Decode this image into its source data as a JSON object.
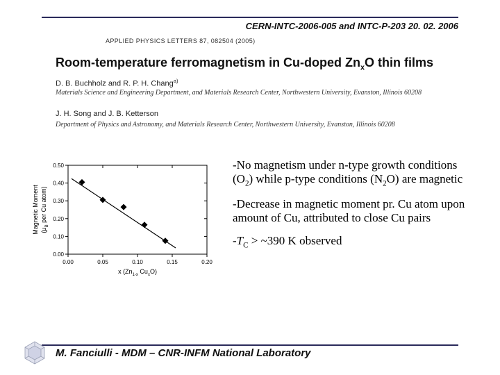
{
  "header": {
    "ref": "CERN-INTC-2006-005 and INTC-P-203 20. 02. 2006",
    "journal": "APPLIED PHYSICS LETTERS 87, 082504 (2005)"
  },
  "paper": {
    "title_pre": "Room-temperature ferromagnetism in Cu-doped Zn",
    "title_sub": "x",
    "title_post": "O thin films",
    "authors1": "D. B. Buchholz and R. P. H. Chang",
    "authors1_sup": "a)",
    "affil1": "Materials Science and Engineering Department, and Materials Research Center, Northwestern University, Evanston, Illinois 60208",
    "authors2": "J. H. Song and J. B. Ketterson",
    "affil2": "Department of Physics and Astronomy, and Materials Research Center, Northwestern University, Evanston, Illinois 60208"
  },
  "chart": {
    "type": "scatter-line",
    "xlabel_pre": "x (Zn",
    "xlabel_mid": "1-x",
    "xlabel_post": " Cu",
    "xlabel_end": "O)",
    "ylabel_l1": "Magnetic Moment",
    "ylabel_l2_pre": "(μ",
    "ylabel_l2_sub": "B",
    "ylabel_l2_post": " per Cu atom)",
    "xlim": [
      0.0,
      0.2
    ],
    "ylim": [
      0.0,
      0.5
    ],
    "xticks": [
      0.0,
      0.05,
      0.1,
      0.15,
      0.2
    ],
    "yticks": [
      0.0,
      0.1,
      0.2,
      0.3,
      0.4,
      0.5
    ],
    "xtick_labels": [
      "0.00",
      "0.05",
      "0.10",
      "0.15",
      "0.20"
    ],
    "ytick_labels": [
      "0.00",
      "0.10",
      "0.20",
      "0.30",
      "0.40",
      "0.50"
    ],
    "points": [
      {
        "x": 0.02,
        "y": 0.405
      },
      {
        "x": 0.05,
        "y": 0.305
      },
      {
        "x": 0.08,
        "y": 0.265
      },
      {
        "x": 0.11,
        "y": 0.165
      },
      {
        "x": 0.14,
        "y": 0.075
      }
    ],
    "line": {
      "x1": 0.005,
      "y1": 0.425,
      "x2": 0.155,
      "y2": 0.035
    },
    "marker_color": "#000000",
    "marker_size": 4.5,
    "line_color": "#000000",
    "line_width": 1.2,
    "axis_color": "#000000",
    "tick_fontsize": 8,
    "label_fontsize": 9,
    "background_color": "#ffffff"
  },
  "bullets": {
    "b1_a": "-No magnetism under n-type growth conditions (O",
    "b1_sub": "2",
    "b1_b": ") while p-type conditions (N",
    "b1_sub2": "2",
    "b1_c": "O) are magnetic",
    "b2": "-Decrease in magnetic moment pr. Cu atom upon amount of Cu, attributed to close Cu pairs",
    "b3_a": "-",
    "b3_T": "T",
    "b3_sub": "C",
    "b3_b": " > ~390 K observed"
  },
  "footer": {
    "text": "M. Fanciulli - MDM – CNR-INFM National Laboratory"
  }
}
